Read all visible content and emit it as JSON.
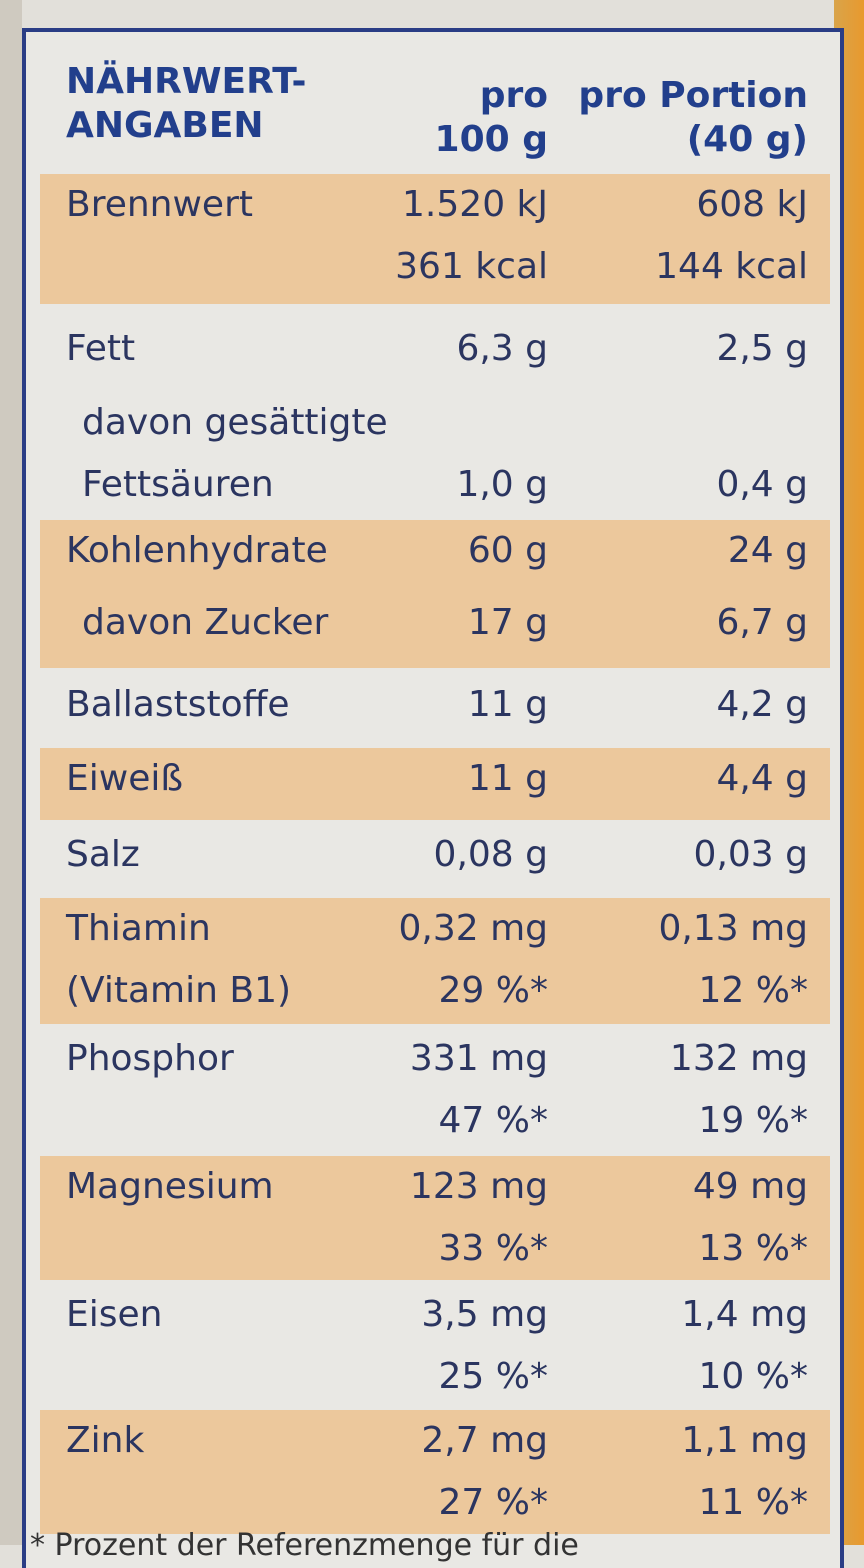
{
  "table": {
    "header": {
      "name": "NÄHRWERT-\nANGABEN",
      "per100": "pro\n100 g",
      "perPortion": "pro Portion\n(40 g)"
    },
    "rows": [
      {
        "name": "Brennwert",
        "per100": "1.520 kJ\n361 kcal",
        "perPortion": "608 kJ\n144 kcal",
        "shaded": true
      },
      {
        "name": "Fett",
        "per100": "6,3 g",
        "perPortion": "2,5 g",
        "shaded": false
      },
      {
        "name": "davon gesättigte\nFettsäuren",
        "per100": "1,0 g",
        "perPortion": "0,4 g",
        "shaded": false
      },
      {
        "name": "Kohlenhydrate",
        "per100": "60 g",
        "perPortion": "24 g",
        "shaded": true
      },
      {
        "name": "davon Zucker",
        "per100": "17 g",
        "perPortion": "6,7 g",
        "shaded": true
      },
      {
        "name": "Ballaststoffe",
        "per100": "11 g",
        "perPortion": "4,2 g",
        "shaded": false
      },
      {
        "name": "Eiweiß",
        "per100": "11 g",
        "perPortion": "4,4 g",
        "shaded": true
      },
      {
        "name": "Salz",
        "per100": "0,08 g",
        "perPortion": "0,03 g",
        "shaded": false
      },
      {
        "name": "Thiamin\n(Vitamin B1)",
        "per100": "0,32 mg\n29 %*",
        "perPortion": "0,13 mg\n12 %*",
        "shaded": true
      },
      {
        "name": "Phosphor",
        "per100": "331 mg\n47 %*",
        "perPortion": "132 mg\n19 %*",
        "shaded": false
      },
      {
        "name": "Magnesium",
        "per100": "123 mg\n33 %*",
        "perPortion": "49 mg\n13 %*",
        "shaded": true
      },
      {
        "name": "Eisen",
        "per100": "3,5 mg\n25 %*",
        "perPortion": "1,4 mg\n10 %*",
        "shaded": false
      },
      {
        "name": "Zink",
        "per100": "2,7 mg\n27 %*",
        "perPortion": "1,1 mg\n11 %*",
        "shaded": true
      }
    ]
  },
  "footer": "* Prozent der Referenzmenge für die",
  "colors": {
    "text": "#2b3560",
    "header": "#223f8c",
    "border": "#2a3d85",
    "shade": "#ecc89c",
    "background": "#e9e8e4"
  }
}
